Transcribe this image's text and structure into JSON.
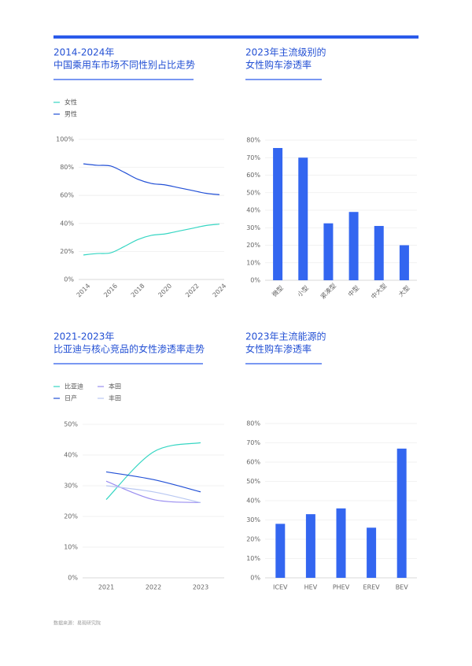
{
  "chart_data": [
    {
      "type": "line",
      "title_lines": [
        "2014-2024年",
        "中国乘用车市场不同性别占比走势"
      ],
      "x": [
        2014,
        2015,
        2016,
        2017,
        2018,
        2019,
        2020,
        2021,
        2022,
        2023,
        2024
      ],
      "xlim": [
        2014,
        2024
      ],
      "xticks": [
        2014,
        2016,
        2018,
        2020,
        2022,
        2024
      ],
      "series": [
        {
          "name": "女性",
          "color": "#36d6c3",
          "values": [
            17.5,
            18.5,
            19,
            23.5,
            28.5,
            31.5,
            32.5,
            34.5,
            36.5,
            38.5,
            39.5
          ]
        },
        {
          "name": "男性",
          "color": "#2250d6",
          "values": [
            82.5,
            81.5,
            81,
            76.5,
            71.5,
            68.5,
            67.5,
            65.5,
            63.5,
            61.5,
            60.5
          ]
        }
      ],
      "ylim": [
        0,
        100
      ],
      "yticks": [
        {
          "value": 0,
          "label": "0%"
        },
        {
          "value": 20,
          "label": "20%"
        },
        {
          "value": 40,
          "label": "40%"
        },
        {
          "value": 60,
          "label": "60%"
        },
        {
          "value": 80,
          "label": "80%"
        },
        {
          "value": 100,
          "label": "100%"
        }
      ],
      "grid": true
    },
    {
      "type": "bar",
      "title_lines": [
        "2023年主流级别的",
        "女性购车渗透率"
      ],
      "categories": [
        "微型",
        "小型",
        "紧凑型",
        "中型",
        "中大型",
        "大型"
      ],
      "values": [
        75.5,
        70,
        32.5,
        39,
        31,
        20
      ],
      "color": "#3366f0",
      "ylim": [
        0,
        80
      ],
      "yticks": [
        {
          "value": 0,
          "label": "0%"
        },
        {
          "value": 10,
          "label": "10%"
        },
        {
          "value": 20,
          "label": "20%"
        },
        {
          "value": 30,
          "label": "30%"
        },
        {
          "value": 40,
          "label": "40%"
        },
        {
          "value": 50,
          "label": "50%"
        },
        {
          "value": 60,
          "label": "60%"
        },
        {
          "value": 70,
          "label": "70%"
        },
        {
          "value": 80,
          "label": "80%"
        }
      ],
      "grid": true,
      "rotate_labels": true
    },
    {
      "type": "line",
      "title_lines": [
        "2021-2023年",
        "比亚迪与核心竞品的女性渗透率走势"
      ],
      "categories": [
        "2021",
        "2022",
        "2023"
      ],
      "series": [
        {
          "name": "比亚迪",
          "color": "#36d6c3",
          "values": [
            25.5,
            41,
            44
          ]
        },
        {
          "name": "本田",
          "color": "#9a8ef0",
          "values": [
            31.5,
            25.5,
            24.5
          ]
        },
        {
          "name": "日产",
          "color": "#2250d6",
          "values": [
            34.5,
            32,
            28
          ]
        },
        {
          "name": "丰田",
          "color": "#b9c8f2",
          "values": [
            30,
            28,
            24.5
          ]
        }
      ],
      "ylim": [
        0,
        50
      ],
      "yticks": [
        {
          "value": 0,
          "label": "0%"
        },
        {
          "value": 10,
          "label": "10%"
        },
        {
          "value": 20,
          "label": "20%"
        },
        {
          "value": 30,
          "label": "30%"
        },
        {
          "value": 40,
          "label": "40%"
        },
        {
          "value": 50,
          "label": "50%"
        }
      ],
      "grid": true
    },
    {
      "type": "bar",
      "title_lines": [
        "2023年主流能源的",
        "女性购车渗透率"
      ],
      "categories": [
        "ICEV",
        "HEV",
        "PHEV",
        "EREV",
        "BEV"
      ],
      "values": [
        28,
        33,
        36,
        26,
        67
      ],
      "color": "#3366f0",
      "ylim": [
        0,
        80
      ],
      "yticks": [
        {
          "value": 0,
          "label": "0%"
        },
        {
          "value": 10,
          "label": "10%"
        },
        {
          "value": 20,
          "label": "20%"
        },
        {
          "value": 30,
          "label": "30%"
        },
        {
          "value": 40,
          "label": "40%"
        },
        {
          "value": 50,
          "label": "50%"
        },
        {
          "value": 60,
          "label": "60%"
        },
        {
          "value": 70,
          "label": "70%"
        },
        {
          "value": 80,
          "label": "80%"
        }
      ],
      "grid": true
    }
  ],
  "source": "数据来源：易观研究院"
}
